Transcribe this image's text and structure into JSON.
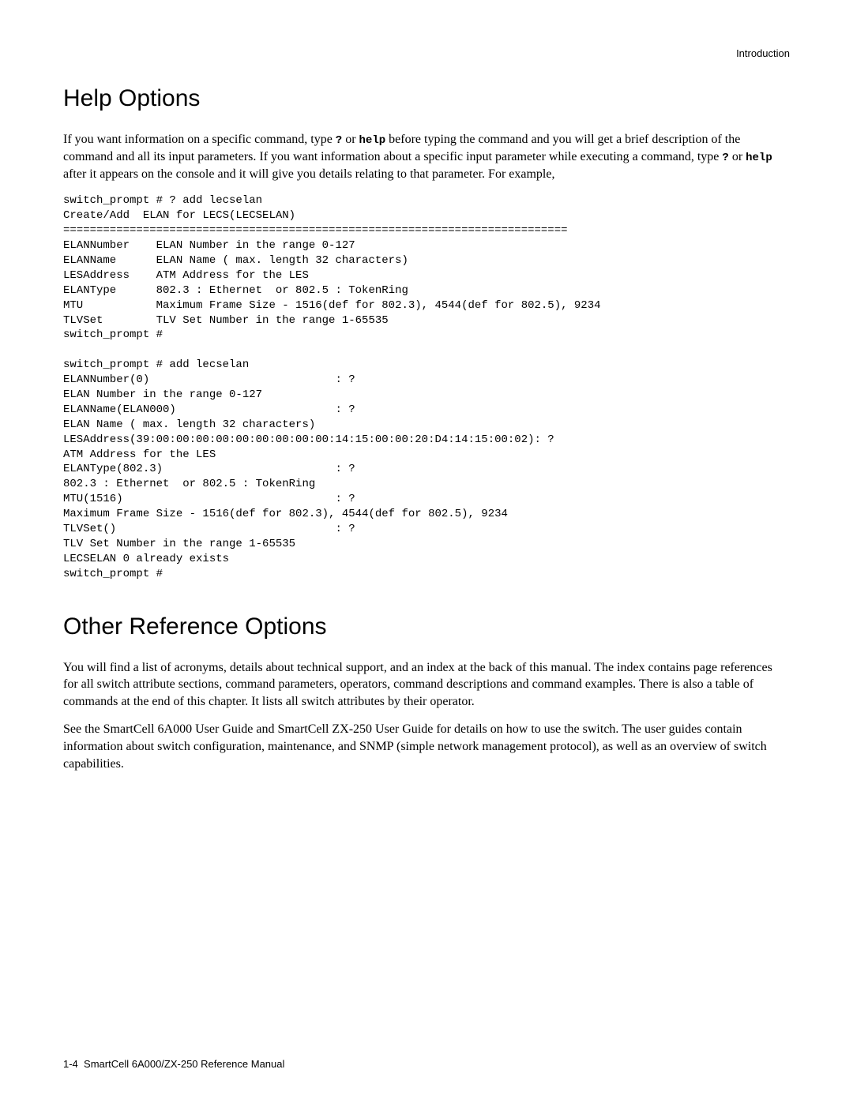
{
  "header": {
    "section_label": "Introduction"
  },
  "help_section": {
    "title": "Help Options",
    "para_parts": {
      "p1a": "If you want information on a specific command, type ",
      "code1": "?",
      "p1b": " or ",
      "code2": "help",
      "p1c": " before typing the command and you will get a brief description of the command and all its input parameters. If you want information about a specific input parameter while executing a command, type ",
      "code3": "?",
      "p1d": " or ",
      "code4": "help",
      "p1e": " after it appears on the console and it will give you details relating to that parameter. For example,"
    },
    "code_block": "switch_prompt # ? add lecselan\nCreate/Add  ELAN for LECS(LECSELAN)\n============================================================================\nELANNumber    ELAN Number in the range 0-127\nELANName      ELAN Name ( max. length 32 characters)\nLESAddress    ATM Address for the LES\nELANType      802.3 : Ethernet  or 802.5 : TokenRing\nMTU           Maximum Frame Size - 1516(def for 802.3), 4544(def for 802.5), 9234\nTLVSet        TLV Set Number in the range 1-65535\nswitch_prompt #\n\nswitch_prompt # add lecselan\nELANNumber(0)                            : ?\nELAN Number in the range 0-127\nELANName(ELAN000)                        : ?\nELAN Name ( max. length 32 characters)\nLESAddress(39:00:00:00:00:00:00:00:00:00:14:15:00:00:20:D4:14:15:00:02): ?\nATM Address for the LES\nELANType(802.3)                          : ?\n802.3 : Ethernet  or 802.5 : TokenRing\nMTU(1516)                                : ?\nMaximum Frame Size - 1516(def for 802.3), 4544(def for 802.5), 9234\nTLVSet()                                 : ?\nTLV Set Number in the range 1-65535\nLECSELAN 0 already exists\nswitch_prompt #"
  },
  "other_section": {
    "title": "Other Reference Options",
    "para1": "You will find a list of acronyms, details about technical support, and an index at the back of this manual. The index contains page references for all switch attribute sections, command parameters, operators, command descriptions and command examples. There is also a table of commands at the end of this chapter. It lists all switch attributes by their operator.",
    "para2": "See the SmartCell 6A000 User Guide and SmartCell ZX-250 User Guide for details on how to use the switch. The user guides contain information about switch configuration, maintenance, and SNMP (simple network management protocol), as well as an overview of switch capabilities."
  },
  "footer": {
    "page_number": "1-4",
    "manual_title": "SmartCell 6A000/ZX-250 Reference Manual"
  }
}
